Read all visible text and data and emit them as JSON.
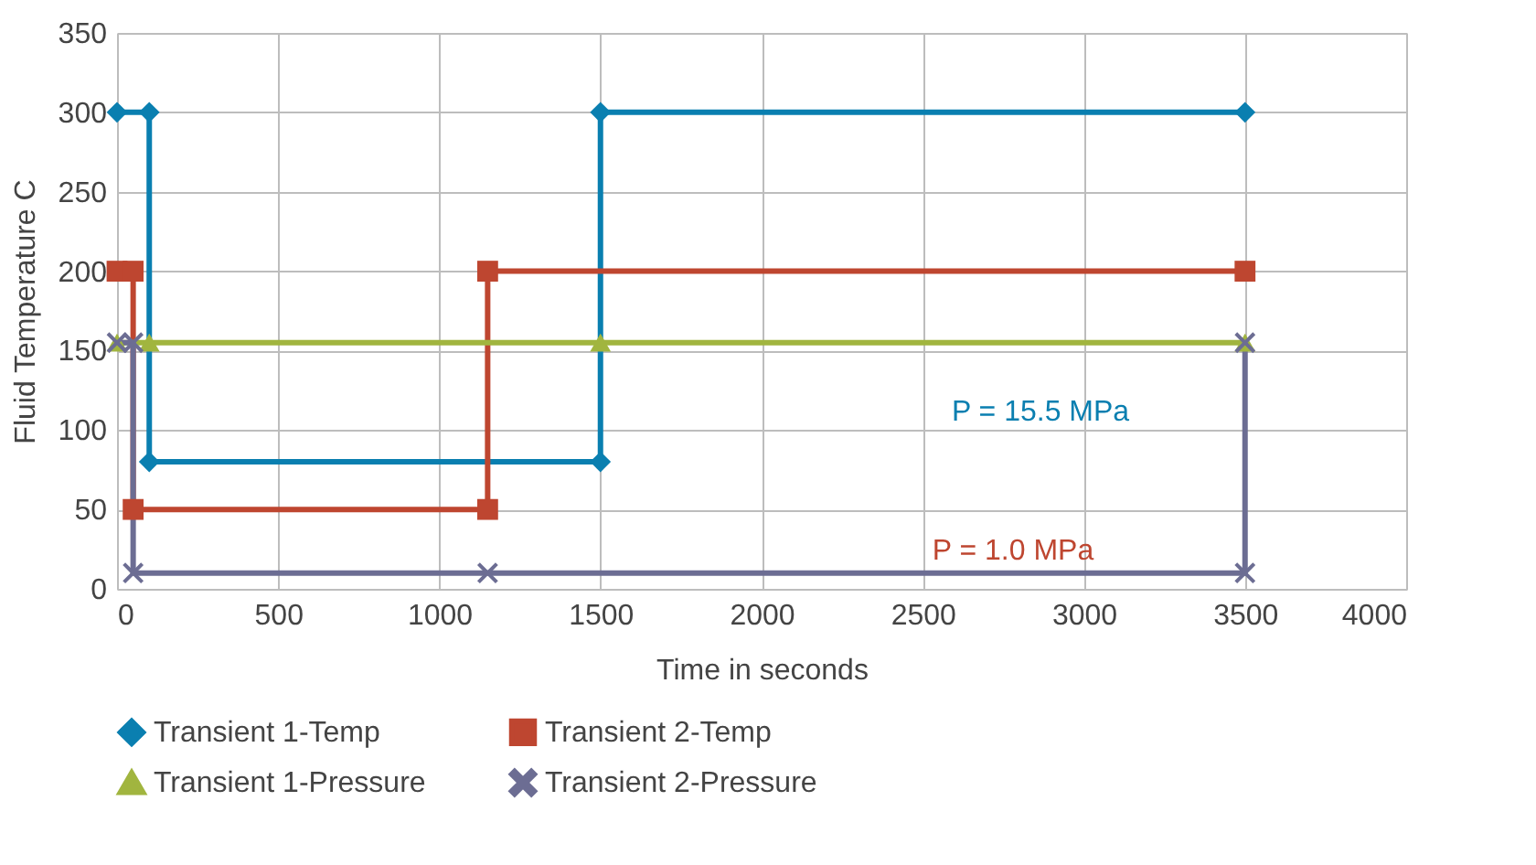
{
  "chart_data": {
    "type": "line",
    "xlabel": "Time in seconds",
    "ylabel": "Fluid Temperature C",
    "xlim": [
      0,
      4000
    ],
    "xticks": [
      0,
      500,
      1000,
      1500,
      2000,
      2500,
      3000,
      3500,
      4000
    ],
    "ylim": [
      0,
      350
    ],
    "yticks": [
      0,
      50,
      100,
      150,
      200,
      250,
      300,
      350
    ],
    "grid": true,
    "legend": "bottom",
    "line_style": "solid",
    "series": [
      {
        "name": "Transient 1-Temp",
        "color": "#0a7fb0",
        "marker": "diamond",
        "x": [
          0,
          100,
          100,
          1500,
          1500,
          3500
        ],
        "values": [
          300,
          300,
          80,
          80,
          300,
          300
        ]
      },
      {
        "name": "Transient 2-Temp",
        "color": "#be4630",
        "marker": "square",
        "x": [
          0,
          50,
          50,
          1150,
          1150,
          3500
        ],
        "values": [
          200,
          200,
          50,
          50,
          200,
          200
        ]
      },
      {
        "name": "Transient 1-Pressure",
        "color": "#a1b53f",
        "marker": "triangle",
        "x": [
          0,
          100,
          1500,
          3500
        ],
        "values": [
          155,
          155,
          155,
          155
        ]
      },
      {
        "name": "Transient 2-Pressure",
        "color": "#6c6d93",
        "marker": "cross",
        "x": [
          0,
          50,
          50,
          1150,
          3500,
          3500
        ],
        "values": [
          155,
          155,
          10,
          10,
          10,
          155
        ]
      }
    ],
    "annotations": [
      "P = 15.5 MPa",
      "P = 1.0 MPa"
    ]
  }
}
